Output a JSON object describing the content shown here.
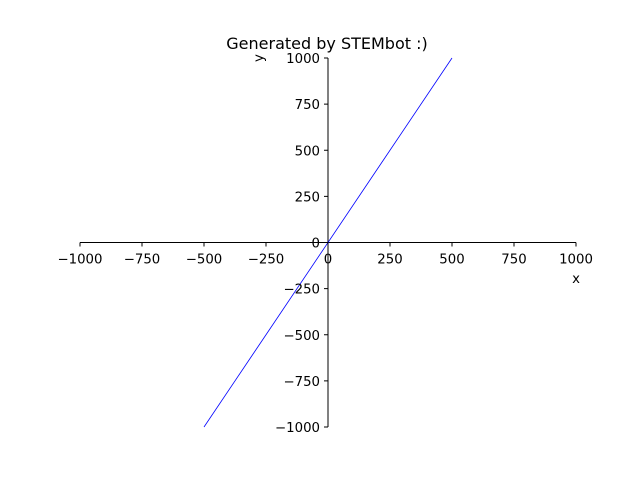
{
  "chart_data": {
    "type": "line",
    "title": "Generated by STEMbot :)",
    "xlabel": "x",
    "ylabel": "y",
    "xlim": [
      -1000,
      1000
    ],
    "ylim": [
      -1000,
      1000
    ],
    "grid": false,
    "x_ticks": [
      -1000,
      -750,
      -500,
      -250,
      0,
      250,
      500,
      750,
      1000
    ],
    "x_tick_labels": [
      "−1000",
      "−750",
      "−500",
      "−250",
      "0",
      "250",
      "500",
      "750",
      "1000"
    ],
    "y_ticks": [
      -1000,
      -750,
      -500,
      -250,
      0,
      250,
      500,
      750,
      1000
    ],
    "y_tick_labels": [
      "−1000",
      "−750",
      "−500",
      "−250",
      "0",
      "250",
      "500",
      "750",
      "1000"
    ],
    "series": [
      {
        "color": "#0000ff",
        "x": [
          -500,
          500
        ],
        "y": [
          -1000,
          1000
        ]
      }
    ]
  }
}
